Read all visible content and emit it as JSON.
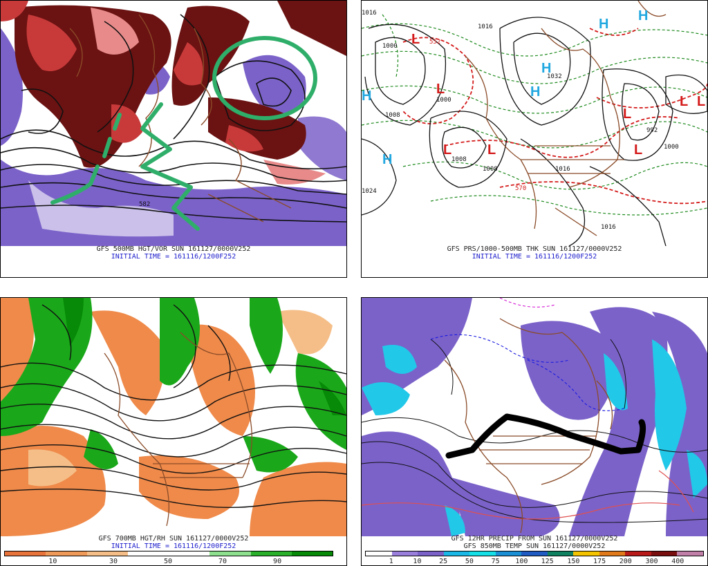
{
  "panels": {
    "tl": {
      "caption1": "GFS 500MB HGT/VOR SUN 161127/0000V252",
      "caption2": "INITIAL TIME = 161116/1200F252",
      "contour_labels": [
        "582"
      ]
    },
    "tr": {
      "caption1": "GFS PRS/1000-500MB THK SUN 161127/0000V252",
      "caption2": "INITIAL TIME = 161116/1200F252",
      "pressure_labels": [
        "1016",
        "1008",
        "1008",
        "1000",
        "1000",
        "1016",
        "1024",
        "1032",
        "992",
        "1000",
        "1016",
        "1008",
        "570",
        "552",
        "1016"
      ],
      "lows": [
        "L",
        "L",
        "L",
        "L",
        "L",
        "L",
        "L",
        "L"
      ],
      "highs": [
        "H",
        "H",
        "H",
        "H",
        "H",
        "H"
      ]
    },
    "bl": {
      "caption1": "GFS 700MB HGT/RH SUN 161127/0000V252",
      "caption2": "INITIAL TIME = 161116/1200F252",
      "legend": [
        "10",
        "30",
        "50",
        "70",
        "90"
      ],
      "legend_colors": [
        "#e8743c",
        "#f09a5a",
        "#f5be88",
        "#ffffff",
        "#ffffff",
        "#8ee08e",
        "#2ab02a",
        "#078a07"
      ]
    },
    "br": {
      "caption1": "GFS 12HR PRECIP FROM SUN 161127/0000V252",
      "caption2": "GFS 850MB TEMP SUN 161127/0000V252",
      "legend": [
        "1",
        "10",
        "25",
        "50",
        "75",
        "100",
        "125",
        "150",
        "175",
        "200",
        "300",
        "400"
      ],
      "legend_colors": [
        "#ffffff",
        "#9b7fdc",
        "#7a62c8",
        "#19b8e6",
        "#15e0e8",
        "#1a8fd6",
        "#1f5bc2",
        "#0f8060",
        "#f5c400",
        "#e07a1a",
        "#b81a1a",
        "#7a0f0f",
        "#c080a8"
      ]
    }
  },
  "colors": {
    "purple": "#7b62c9",
    "darkred": "#6b1212",
    "red": "#c83a3a",
    "pink": "#e88a8a",
    "orange": "#ef8a4a",
    "green": "#1aa81a",
    "annot_green": "#2fae6a",
    "cyan": "#22c8e8",
    "brown": "#8a4b28"
  }
}
